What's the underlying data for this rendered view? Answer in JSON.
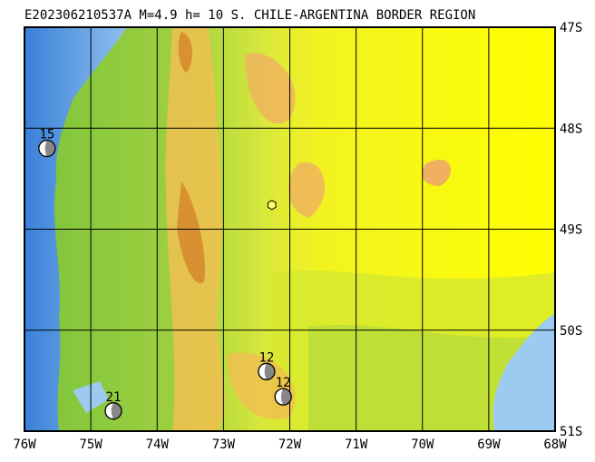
{
  "title": "E202306210537A M=4.9 h= 10 S. CHILE-ARGENTINA BORDER REGION",
  "map": {
    "xlim": [
      -76,
      -68
    ],
    "ylim": [
      -51,
      -47
    ],
    "xticks": [
      {
        "value": -76,
        "label": "76W"
      },
      {
        "value": -75,
        "label": "75W"
      },
      {
        "value": -74,
        "label": "74W"
      },
      {
        "value": -73,
        "label": "73W"
      },
      {
        "value": -72,
        "label": "72W"
      },
      {
        "value": -71,
        "label": "71W"
      },
      {
        "value": -70,
        "label": "70W"
      },
      {
        "value": -69,
        "label": "69W"
      },
      {
        "value": -68,
        "label": "68W"
      }
    ],
    "yticks": [
      {
        "value": -47,
        "label": "47S"
      },
      {
        "value": -48,
        "label": "48S"
      },
      {
        "value": -49,
        "label": "49S"
      },
      {
        "value": -50,
        "label": "50S"
      },
      {
        "value": -51,
        "label": "51S"
      }
    ],
    "epicenter": {
      "lon": -72.27,
      "lat": -48.76
    },
    "events": [
      {
        "label": "15",
        "lon": -75.66,
        "lat": -48.2
      },
      {
        "label": "12",
        "lon": -72.35,
        "lat": -50.41
      },
      {
        "label": "12",
        "lon": -72.1,
        "lat": -50.66
      },
      {
        "label": "21",
        "lon": -74.66,
        "lat": -50.8
      }
    ]
  }
}
